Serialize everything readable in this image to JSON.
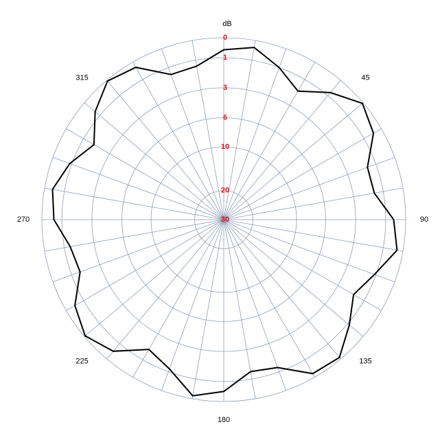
{
  "chart_data": {
    "type": "polar",
    "r_title": "dB",
    "theta": [
      0,
      10,
      20,
      30,
      40,
      50,
      60,
      70,
      80,
      90,
      100,
      110,
      120,
      130,
      140,
      150,
      160,
      170,
      180,
      190,
      200,
      210,
      220,
      230,
      240,
      250,
      260,
      270,
      280,
      290,
      300,
      310,
      320,
      330,
      340,
      350
    ],
    "values": [
      0.6,
      0.35,
      1.0,
      1.9,
      0.8,
      0.05,
      0.45,
      1.6,
      1.6,
      0.6,
      0.3,
      1.1,
      1.8,
      0.9,
      0.1,
      0.2,
      1.3,
      1.5,
      0.5,
      0.15,
      1.2,
      1.8,
      0.5,
      0.05,
      0.5,
      1.6,
      1.4,
      0.6,
      0.4,
      0.9,
      1.8,
      0.7,
      0.05,
      0.3,
      1.5,
      1.4
    ],
    "color": "#000000",
    "rlim": [
      0,
      30
    ],
    "rticks": [
      0,
      1,
      3,
      6,
      10,
      20,
      30
    ],
    "rtick_color": "#e8101c",
    "thetaticks": [
      45,
      90,
      135,
      180,
      225,
      270,
      315
    ],
    "theta_grid": [
      0,
      10,
      20,
      30,
      40,
      50,
      60,
      70,
      80,
      90,
      100,
      110,
      120,
      130,
      140,
      150,
      160,
      170,
      180,
      190,
      200,
      210,
      220,
      230,
      240,
      250,
      260,
      270,
      280,
      290,
      300,
      310,
      320,
      330,
      340,
      350
    ],
    "grid_color": "#8b9fba"
  }
}
